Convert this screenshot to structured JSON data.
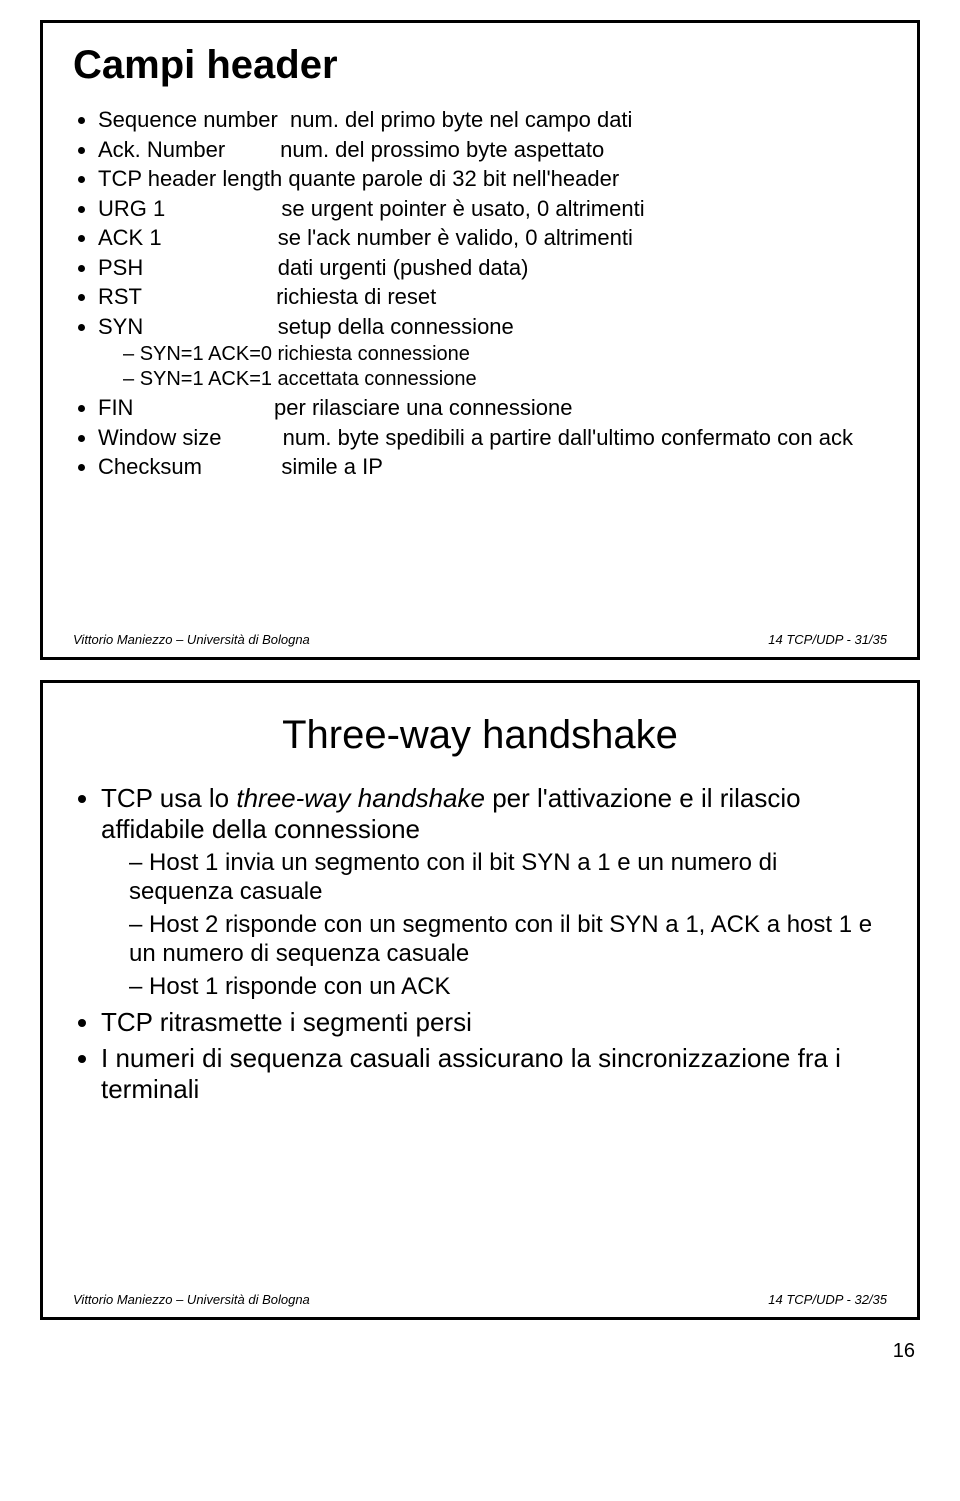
{
  "slide1": {
    "title": "Campi header",
    "items": [
      {
        "name": "Sequence number",
        "desc": "num. del primo byte nel campo dati"
      },
      {
        "name": "Ack. Number",
        "desc": "num. del prossimo byte aspettato"
      },
      {
        "name": "TCP header length",
        "desc": "quante parole di 32 bit nell'header"
      },
      {
        "name": "URG 1",
        "desc": "se urgent pointer è usato, 0 altrimenti"
      },
      {
        "name": "ACK 1",
        "desc": "se l'ack number è valido, 0 altrimenti"
      },
      {
        "name": "PSH",
        "desc": "dati urgenti (pushed data)"
      },
      {
        "name": "RST",
        "desc": "richiesta di reset"
      },
      {
        "name": "SYN",
        "desc": "setup della connessione"
      }
    ],
    "syn_sub": [
      "SYN=1 ACK=0 richiesta connessione",
      "SYN=1 ACK=1 accettata connessione"
    ],
    "items2": [
      {
        "name": "FIN",
        "desc": "per rilasciare una connessione"
      },
      {
        "name": "Window size",
        "desc": "num. byte spedibili a partire dall'ultimo confermato con ack"
      },
      {
        "name": "Checksum",
        "desc": "simile a IP"
      }
    ],
    "footer_left": "Vittorio Maniezzo – Università di Bologna",
    "footer_right": "14 TCP/UDP - 31/35"
  },
  "slide2": {
    "title": "Three-way handshake",
    "b1a": "TCP usa lo ",
    "b1b": "three-way handshake",
    "b1c": " per l'attivazione e il rilascio affidabile della connessione",
    "sub": [
      "Host 1 invia un segmento con il bit SYN a 1 e un numero di sequenza casuale",
      "Host 2 risponde con un segmento con il bit SYN a 1, ACK a host 1 e un numero di sequenza casuale",
      "Host 1 risponde con un ACK"
    ],
    "b2": "TCP ritrasmette i segmenti persi",
    "b3": "I numeri di sequenza casuali assicurano la sincronizzazione fra i terminali",
    "footer_left": "Vittorio Maniezzo – Università di Bologna",
    "footer_right": "14 TCP/UDP - 32/35"
  },
  "page_number": "16"
}
